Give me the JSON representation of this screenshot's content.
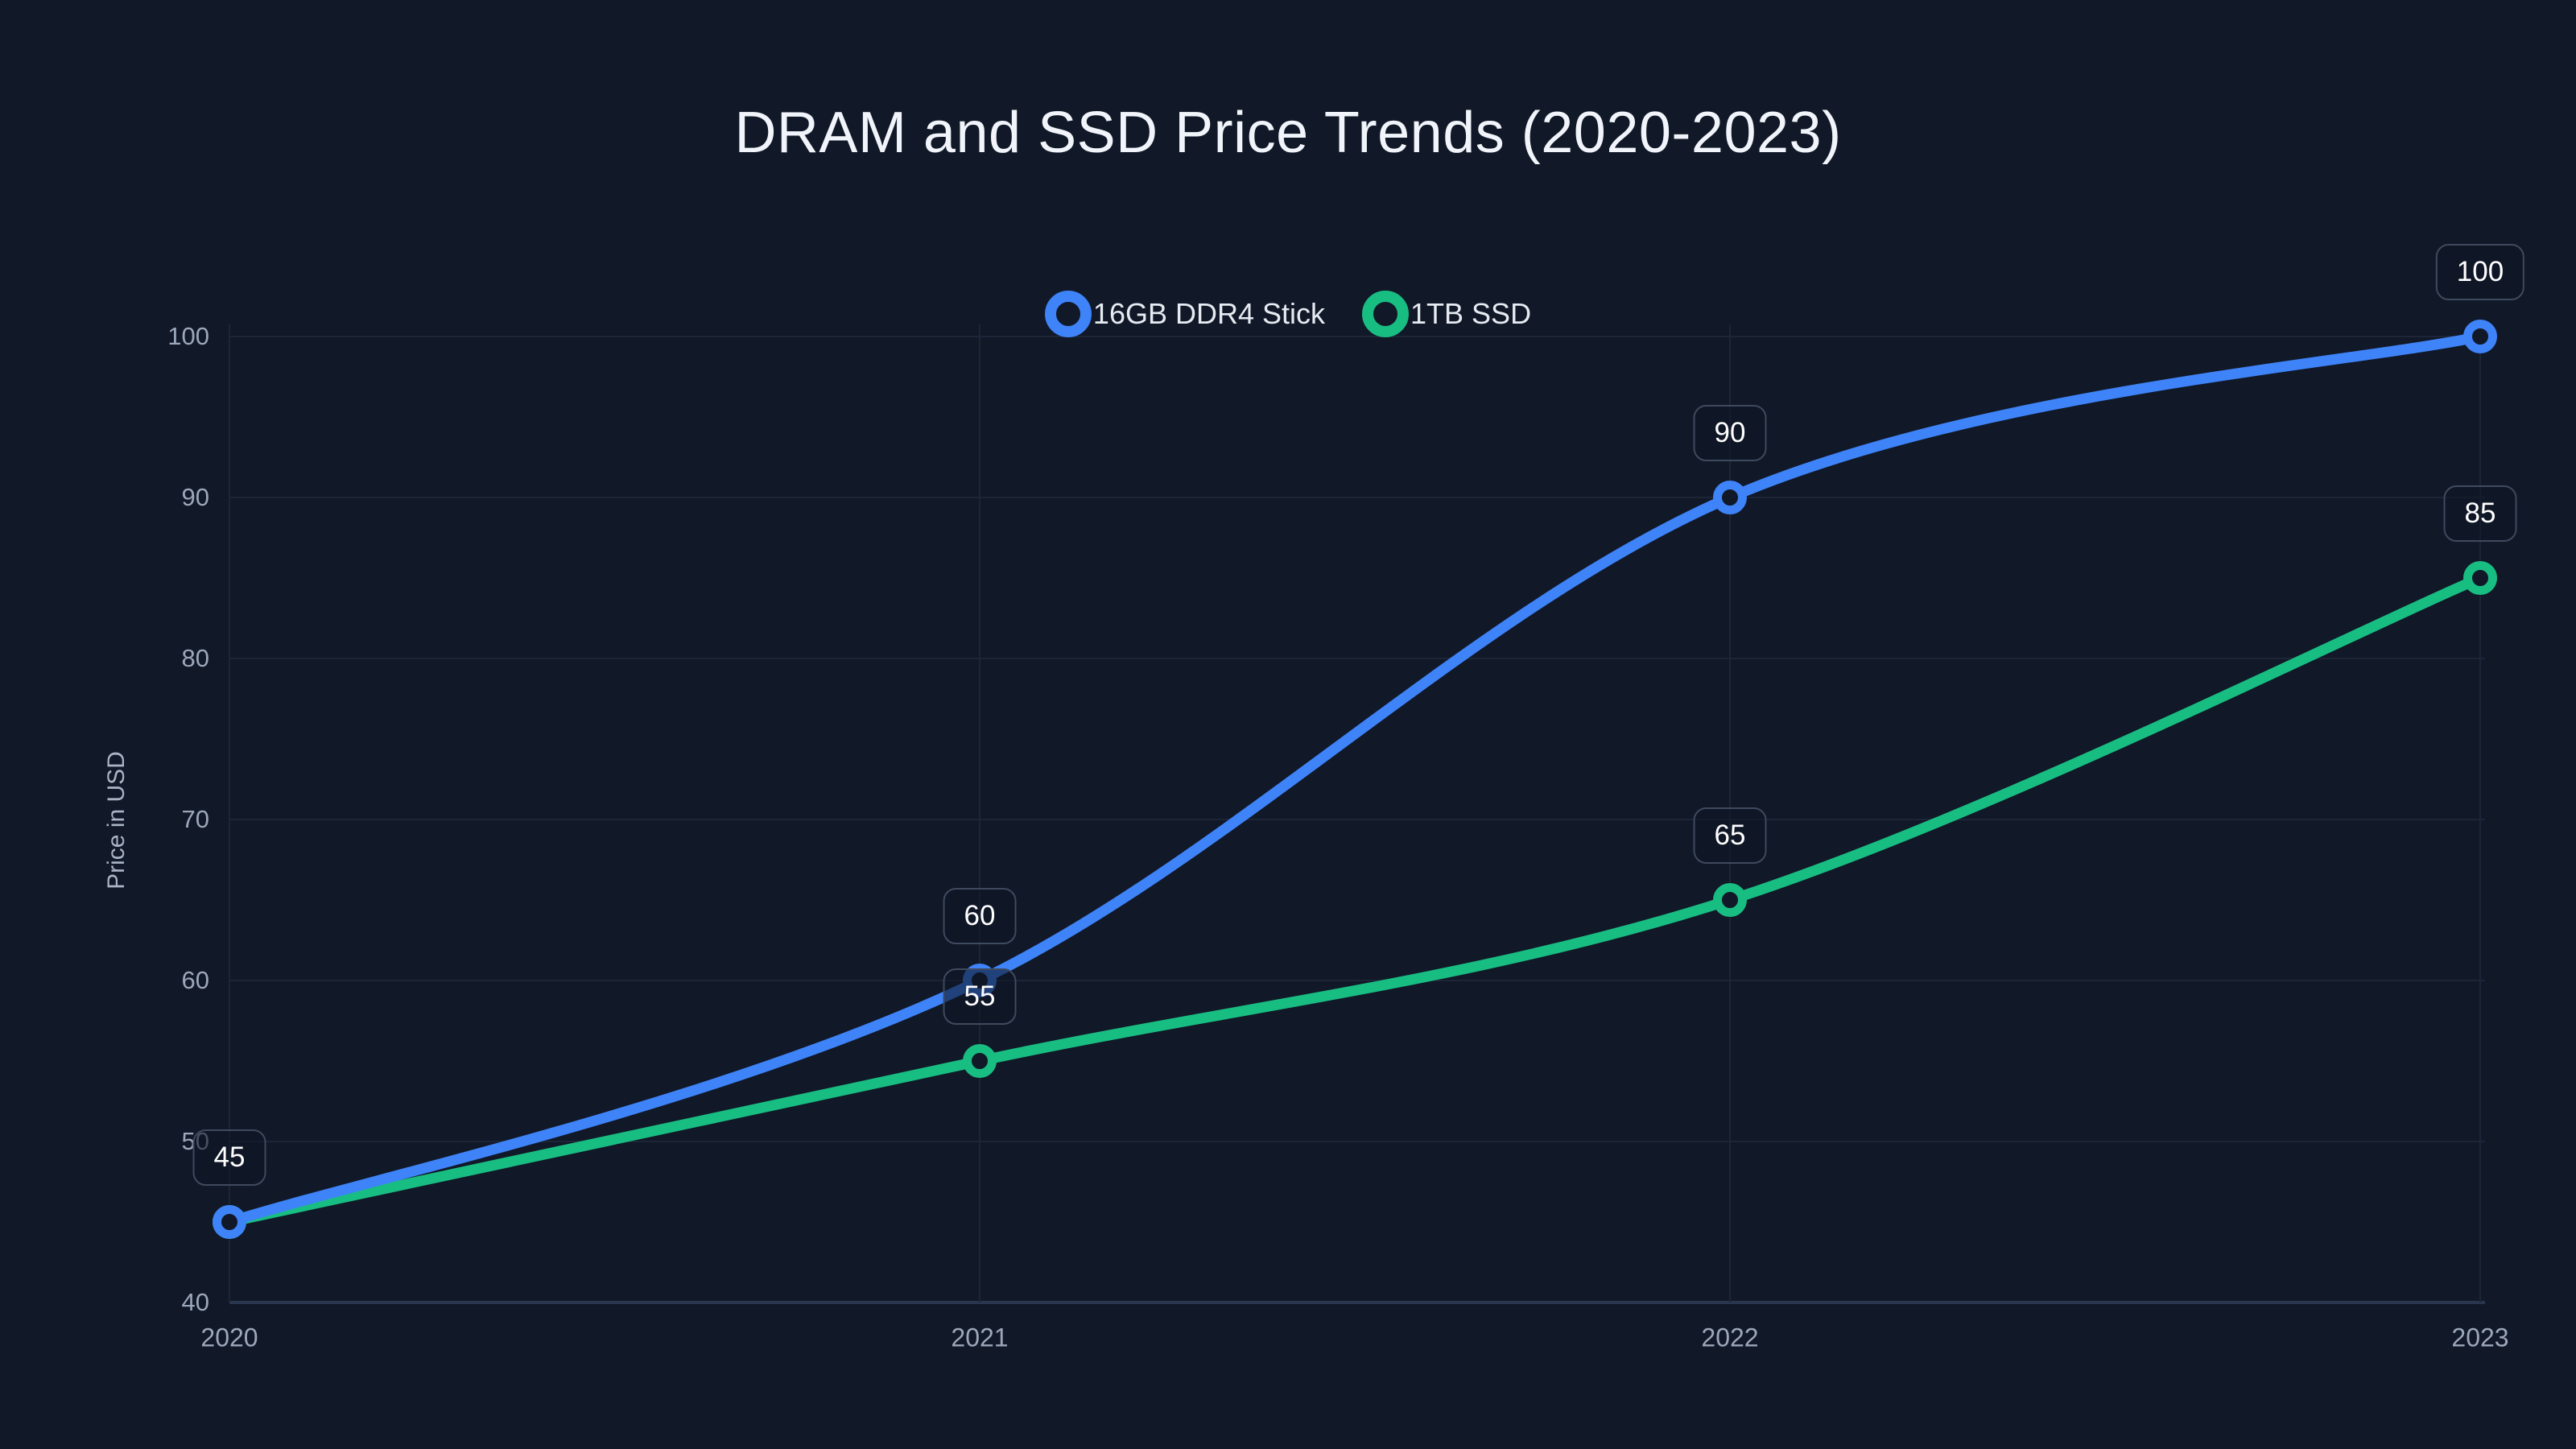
{
  "chart_data": {
    "type": "line",
    "title": "DRAM and SSD Price Trends (2020-2023)",
    "xlabel": "",
    "ylabel": "Price in USD",
    "categories": [
      "2020",
      "2021",
      "2022",
      "2023"
    ],
    "series": [
      {
        "name": "16GB DDR4 Stick",
        "color": "#3e83f8",
        "values": [
          45,
          60,
          90,
          100
        ],
        "point_labels": [
          "45",
          "60",
          "90",
          "100"
        ]
      },
      {
        "name": "1TB SSD",
        "color": "#18bd82",
        "values": [
          45,
          55,
          65,
          85
        ],
        "point_labels": [
          null,
          "55",
          "65",
          "85"
        ]
      }
    ],
    "ylim": [
      40,
      100
    ],
    "yticks": [
      40,
      50,
      60,
      70,
      80,
      90,
      100
    ],
    "grid": true,
    "smooth": true,
    "legend_position": "top"
  },
  "theme": {
    "background": "#111827",
    "grid_color": "#1d2638",
    "axis_color": "#2a3650",
    "tick_color": "#9ba7ba",
    "title_color": "#f1f5fb",
    "legend_text_color": "#e6ebf2",
    "badge_background": "rgba(15,22,38,0.6)",
    "badge_border": "#3e4a5e",
    "badge_text": "#ffffff"
  }
}
